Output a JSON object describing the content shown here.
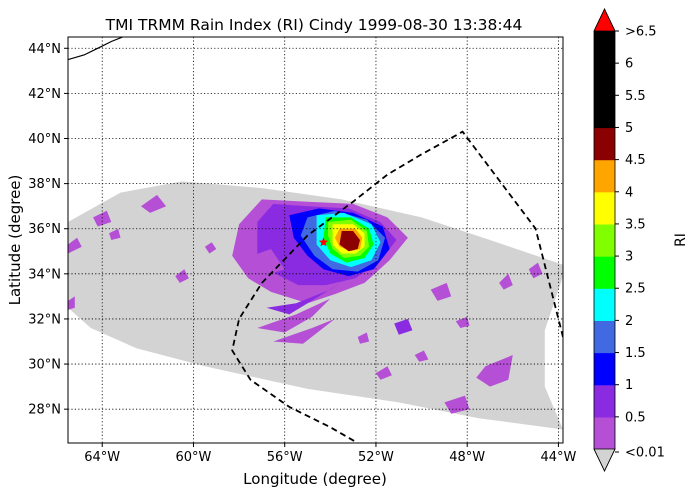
{
  "chart_data": {
    "type": "heatmap",
    "title": "TMI TRMM Rain Index (RI) Cindy 1999-08-30 13:38:44",
    "xlabel": "Longitude (degree)",
    "ylabel": "Latitude (degree)",
    "xlim": [
      -65.5,
      -43.8
    ],
    "ylim": [
      26.5,
      44.5
    ],
    "x_ticks": [
      {
        "value": -64,
        "label": "64°W"
      },
      {
        "value": -60,
        "label": "60°W"
      },
      {
        "value": -56,
        "label": "56°W"
      },
      {
        "value": -52,
        "label": "52°W"
      },
      {
        "value": -48,
        "label": "48°W"
      },
      {
        "value": -44,
        "label": "44°W"
      }
    ],
    "y_ticks": [
      {
        "value": 28,
        "label": "28°N"
      },
      {
        "value": 30,
        "label": "30°N"
      },
      {
        "value": 32,
        "label": "32°N"
      },
      {
        "value": 34,
        "label": "34°N"
      },
      {
        "value": 36,
        "label": "36°N"
      },
      {
        "value": 38,
        "label": "38°N"
      },
      {
        "value": 40,
        "label": "40°N"
      },
      {
        "value": 42,
        "label": "42°N"
      },
      {
        "value": 44,
        "label": "44°N"
      }
    ],
    "grid": true,
    "no_data_color": "#d3d3d3",
    "swath_outline": [
      [
        -65.5,
        36.3
      ],
      [
        -63.2,
        37.6
      ],
      [
        -60.5,
        38.1
      ],
      [
        -57.0,
        37.8
      ],
      [
        -53.5,
        37.3
      ],
      [
        -50.0,
        36.5
      ],
      [
        -47.0,
        35.5
      ],
      [
        -43.8,
        34.4
      ],
      [
        -43.8,
        33.9
      ],
      [
        -44.6,
        31.5
      ],
      [
        -44.6,
        29.0
      ],
      [
        -43.8,
        27.1
      ],
      [
        -47.5,
        27.6
      ],
      [
        -51.0,
        28.3
      ],
      [
        -55.0,
        28.9
      ],
      [
        -59.5,
        29.9
      ],
      [
        -62.5,
        30.7
      ],
      [
        -64.5,
        31.6
      ],
      [
        -65.5,
        32.5
      ]
    ],
    "track": [
      [
        -43.8,
        31.2
      ],
      [
        -45.0,
        36.0
      ],
      [
        -48.2,
        40.3
      ],
      [
        -50.0,
        39.3
      ],
      [
        -51.5,
        38.4
      ],
      [
        -53.0,
        37.2
      ],
      [
        -55.0,
        35.7
      ],
      [
        -57.0,
        33.6
      ],
      [
        -58.0,
        32.0
      ],
      [
        -58.3,
        30.6
      ],
      [
        -57.5,
        29.3
      ],
      [
        -55.8,
        28.1
      ],
      [
        -54.0,
        27.2
      ],
      [
        -52.8,
        26.5
      ]
    ],
    "storm_center": [
      -54.3,
      35.4
    ],
    "coastline": [
      [
        -65.5,
        43.5
      ],
      [
        -64.8,
        43.7
      ],
      [
        -64.2,
        44.0
      ],
      [
        -63.6,
        44.3
      ],
      [
        -63.1,
        44.5
      ]
    ],
    "colorbar": {
      "label": "RI",
      "under_color": "#d3d3d3",
      "over_color": "#ff0000",
      "bins": [
        {
          "color": "#b44fd6",
          "label": "<0.01"
        },
        {
          "color": "#8a2be2",
          "label": "0.5"
        },
        {
          "color": "#0000ff",
          "label": "1"
        },
        {
          "color": "#4169e1",
          "label": "1.5"
        },
        {
          "color": "#00ffff",
          "label": "2"
        },
        {
          "color": "#00ff00",
          "label": "2.5"
        },
        {
          "color": "#7fff00",
          "label": "3"
        },
        {
          "color": "#ffff00",
          "label": "3.5"
        },
        {
          "color": "#ffa500",
          "label": "4"
        },
        {
          "color": "#8b0000",
          "label": "4.5"
        },
        {
          "color": "#000000",
          "label": "5"
        },
        {
          "color": "#000000",
          "label": "5.5"
        },
        {
          "color": "#000000",
          "label": "6"
        }
      ],
      "top_label": ">6.5"
    },
    "rain_patches": [
      {
        "level": 0,
        "points": [
          [
            -58.0,
            36.2
          ],
          [
            -57.0,
            37.3
          ],
          [
            -55.0,
            37.2
          ],
          [
            -53.0,
            37.1
          ],
          [
            -51.5,
            36.5
          ],
          [
            -50.6,
            35.6
          ],
          [
            -51.4,
            34.6
          ],
          [
            -52.5,
            33.6
          ],
          [
            -53.8,
            33.1
          ],
          [
            -55.0,
            32.7
          ],
          [
            -56.6,
            33.2
          ],
          [
            -57.6,
            33.8
          ],
          [
            -58.3,
            34.8
          ]
        ]
      },
      {
        "level": 1,
        "points": [
          [
            -57.2,
            36.3
          ],
          [
            -56.5,
            37.1
          ],
          [
            -55.0,
            37.0
          ],
          [
            -53.2,
            36.9
          ],
          [
            -51.8,
            36.3
          ],
          [
            -51.1,
            35.5
          ],
          [
            -51.8,
            34.6
          ],
          [
            -52.9,
            33.8
          ],
          [
            -54.2,
            33.5
          ],
          [
            -55.4,
            33.5
          ],
          [
            -56.4,
            34.0
          ],
          [
            -57.2,
            34.9
          ]
        ]
      },
      {
        "level": 2,
        "points": [
          [
            -55.8,
            36.6
          ],
          [
            -54.5,
            36.9
          ],
          [
            -53.0,
            36.7
          ],
          [
            -51.7,
            36.1
          ],
          [
            -51.4,
            35.1
          ],
          [
            -52.1,
            34.2
          ],
          [
            -53.2,
            33.9
          ],
          [
            -54.3,
            34.2
          ],
          [
            -55.0,
            34.8
          ],
          [
            -55.6,
            35.6
          ]
        ]
      },
      {
        "level": 3,
        "points": [
          [
            -55.0,
            36.5
          ],
          [
            -53.8,
            36.8
          ],
          [
            -52.4,
            36.4
          ],
          [
            -51.6,
            35.6
          ],
          [
            -51.9,
            34.6
          ],
          [
            -52.8,
            34.1
          ],
          [
            -53.9,
            34.2
          ],
          [
            -54.7,
            34.8
          ],
          [
            -55.3,
            35.7
          ]
        ]
      },
      {
        "level": 4,
        "points": [
          [
            -54.6,
            36.6
          ],
          [
            -53.4,
            36.7
          ],
          [
            -52.2,
            36.2
          ],
          [
            -51.8,
            35.4
          ],
          [
            -52.2,
            34.6
          ],
          [
            -53.1,
            34.3
          ],
          [
            -54.0,
            34.6
          ],
          [
            -54.6,
            35.3
          ]
        ]
      },
      {
        "level": 5,
        "points": [
          [
            -54.2,
            36.5
          ],
          [
            -53.1,
            36.5
          ],
          [
            -52.3,
            36.0
          ],
          [
            -52.1,
            35.3
          ],
          [
            -52.5,
            34.7
          ],
          [
            -53.3,
            34.5
          ],
          [
            -54.0,
            34.9
          ],
          [
            -54.3,
            35.6
          ]
        ]
      },
      {
        "level": 6,
        "points": [
          [
            -54.1,
            36.3
          ],
          [
            -53.1,
            36.4
          ],
          [
            -52.4,
            35.9
          ],
          [
            -52.3,
            35.2
          ],
          [
            -52.7,
            34.8
          ],
          [
            -53.4,
            34.7
          ],
          [
            -53.9,
            35.1
          ],
          [
            -54.1,
            35.7
          ]
        ]
      },
      {
        "level": 7,
        "points": [
          [
            -53.9,
            36.2
          ],
          [
            -53.0,
            36.2
          ],
          [
            -52.5,
            35.8
          ],
          [
            -52.5,
            35.2
          ],
          [
            -52.9,
            34.9
          ],
          [
            -53.5,
            34.9
          ],
          [
            -53.9,
            35.3
          ]
        ]
      },
      {
        "level": 8,
        "points": [
          [
            -53.6,
            36.0
          ],
          [
            -52.9,
            36.0
          ],
          [
            -52.6,
            35.6
          ],
          [
            -52.7,
            35.1
          ],
          [
            -53.1,
            35.0
          ],
          [
            -53.6,
            35.2
          ],
          [
            -53.8,
            35.6
          ]
        ]
      },
      {
        "level": 9,
        "points": [
          [
            -53.5,
            35.9
          ],
          [
            -53.0,
            35.9
          ],
          [
            -52.7,
            35.5
          ],
          [
            -52.8,
            35.1
          ],
          [
            -53.2,
            35.0
          ],
          [
            -53.6,
            35.3
          ]
        ]
      },
      {
        "level": 1,
        "points": [
          [
            -56.8,
            32.5
          ],
          [
            -55.5,
            32.7
          ],
          [
            -54.0,
            33.3
          ],
          [
            -53.4,
            33.7
          ],
          [
            -54.5,
            33.0
          ],
          [
            -55.8,
            32.2
          ]
        ]
      },
      {
        "level": 0,
        "points": [
          [
            -57.2,
            31.6
          ],
          [
            -55.5,
            32.2
          ],
          [
            -54.0,
            32.9
          ],
          [
            -54.8,
            32.1
          ],
          [
            -56.0,
            31.4
          ]
        ]
      },
      {
        "level": 0,
        "points": [
          [
            -56.5,
            31.0
          ],
          [
            -54.8,
            31.6
          ],
          [
            -53.8,
            32.0
          ],
          [
            -55.2,
            30.9
          ]
        ]
      },
      {
        "level": 0,
        "points": [
          [
            -57.7,
            34.7
          ],
          [
            -56.6,
            35.1
          ],
          [
            -56.0,
            34.2
          ],
          [
            -57.2,
            33.8
          ]
        ]
      },
      {
        "level": 0,
        "points": [
          [
            -62.3,
            37.0
          ],
          [
            -61.6,
            37.5
          ],
          [
            -61.2,
            37.0
          ],
          [
            -61.9,
            36.7
          ]
        ]
      },
      {
        "level": 0,
        "points": [
          [
            -64.4,
            36.5
          ],
          [
            -63.8,
            36.8
          ],
          [
            -63.6,
            36.3
          ],
          [
            -64.2,
            36.1
          ]
        ]
      },
      {
        "level": 0,
        "points": [
          [
            -63.7,
            35.8
          ],
          [
            -63.3,
            36.0
          ],
          [
            -63.2,
            35.6
          ],
          [
            -63.6,
            35.5
          ]
        ]
      },
      {
        "level": 0,
        "points": [
          [
            -65.5,
            35.3
          ],
          [
            -65.1,
            35.6
          ],
          [
            -64.9,
            35.2
          ],
          [
            -65.5,
            34.9
          ]
        ]
      },
      {
        "level": 0,
        "points": [
          [
            -65.5,
            32.8
          ],
          [
            -65.2,
            33.0
          ],
          [
            -65.2,
            32.5
          ],
          [
            -65.5,
            32.4
          ]
        ]
      },
      {
        "level": 0,
        "points": [
          [
            -60.8,
            33.9
          ],
          [
            -60.4,
            34.2
          ],
          [
            -60.2,
            33.8
          ],
          [
            -60.6,
            33.6
          ]
        ]
      },
      {
        "level": 0,
        "points": [
          [
            -59.5,
            35.2
          ],
          [
            -59.2,
            35.4
          ],
          [
            -59.0,
            35.1
          ],
          [
            -59.3,
            34.9
          ]
        ]
      },
      {
        "level": 0,
        "points": [
          [
            -49.6,
            33.3
          ],
          [
            -48.9,
            33.6
          ],
          [
            -48.7,
            33.0
          ],
          [
            -49.3,
            32.8
          ]
        ]
      },
      {
        "level": 0,
        "points": [
          [
            -46.6,
            33.6
          ],
          [
            -46.2,
            34.0
          ],
          [
            -46.0,
            33.5
          ],
          [
            -46.4,
            33.3
          ]
        ]
      },
      {
        "level": 0,
        "points": [
          [
            -45.3,
            34.2
          ],
          [
            -44.9,
            34.5
          ],
          [
            -44.7,
            34.0
          ],
          [
            -45.1,
            33.8
          ]
        ]
      },
      {
        "level": 1,
        "points": [
          [
            -51.2,
            31.8
          ],
          [
            -50.6,
            32.0
          ],
          [
            -50.4,
            31.5
          ],
          [
            -51.0,
            31.3
          ]
        ]
      },
      {
        "level": 0,
        "points": [
          [
            -47.2,
            29.9
          ],
          [
            -46.0,
            30.4
          ],
          [
            -46.2,
            29.3
          ],
          [
            -47.0,
            29.0
          ],
          [
            -47.6,
            29.4
          ]
        ]
      },
      {
        "level": 0,
        "points": [
          [
            -49.0,
            28.3
          ],
          [
            -48.1,
            28.6
          ],
          [
            -47.9,
            28.0
          ],
          [
            -48.7,
            27.8
          ]
        ]
      },
      {
        "level": 0,
        "points": [
          [
            -52.0,
            29.6
          ],
          [
            -51.5,
            29.9
          ],
          [
            -51.3,
            29.5
          ],
          [
            -51.8,
            29.3
          ]
        ]
      },
      {
        "level": 0,
        "points": [
          [
            -48.5,
            31.9
          ],
          [
            -48.0,
            32.1
          ],
          [
            -47.9,
            31.7
          ],
          [
            -48.3,
            31.6
          ]
        ]
      },
      {
        "level": 0,
        "points": [
          [
            -50.3,
            30.4
          ],
          [
            -49.9,
            30.6
          ],
          [
            -49.7,
            30.2
          ],
          [
            -50.1,
            30.1
          ]
        ]
      },
      {
        "level": 0,
        "points": [
          [
            -52.8,
            31.2
          ],
          [
            -52.4,
            31.4
          ],
          [
            -52.3,
            31.0
          ],
          [
            -52.7,
            30.9
          ]
        ]
      }
    ]
  }
}
